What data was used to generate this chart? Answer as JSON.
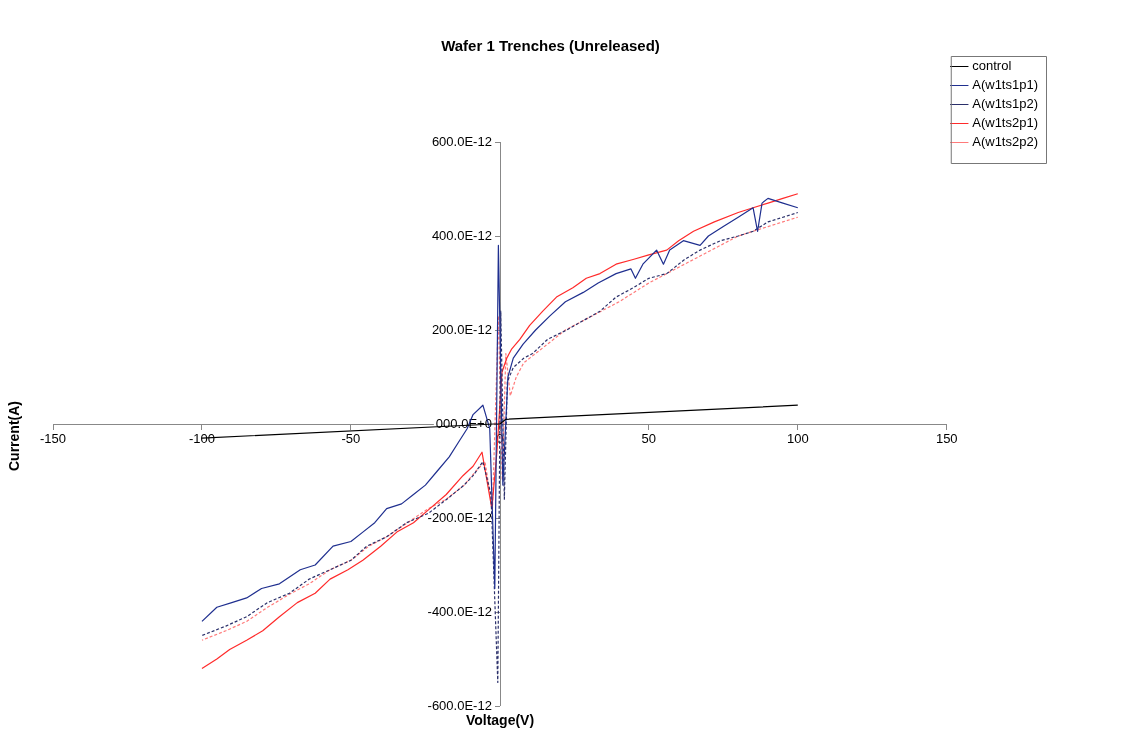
{
  "chart_data": {
    "type": "line",
    "title": "Wafer 1 Trenches (Unreleased)",
    "xlabel": "Voltage(V)",
    "ylabel": "Current(A)",
    "xlim": [
      -150,
      150
    ],
    "xticks": [
      -150,
      -100,
      -50,
      0,
      50,
      100,
      150
    ],
    "ylim": [
      -6e-10,
      6e-10
    ],
    "yticks": [
      {
        "value": -6e-10,
        "label": "-600.0E-12"
      },
      {
        "value": -4e-10,
        "label": "-400.0E-12"
      },
      {
        "value": -2e-10,
        "label": "-200.0E-12"
      },
      {
        "value": 0,
        "label": "000.0E+0"
      },
      {
        "value": 2e-10,
        "label": "200.0E-12"
      },
      {
        "value": 4e-10,
        "label": "400.0E-12"
      },
      {
        "value": 6e-10,
        "label": "600.0E-12"
      }
    ],
    "grid": false,
    "legend": "top right",
    "marker": "none",
    "series": [
      {
        "name": "control",
        "color": "#000000",
        "line_style": "solid",
        "x": [
          -100,
          -2,
          0,
          2,
          100
        ],
        "values": [
          -3e-11,
          0,
          0,
          1e-11,
          4e-11
        ]
      },
      {
        "name": "A(w1ts1p1)",
        "color": "#1f2f8f",
        "line_style": "solid",
        "x": [
          -100,
          -95,
          -90,
          -85,
          -80,
          -74,
          -67,
          -62,
          -56,
          -50,
          -46,
          -42,
          -38,
          -33,
          -29,
          -25,
          -21,
          -17,
          -14,
          -11,
          -9,
          -5.7,
          -3.4,
          -1.7,
          -0.5,
          1,
          2.7,
          4.5,
          7.8,
          12,
          16.8,
          22,
          28,
          33,
          39,
          44,
          45.5,
          48,
          52.6,
          54.9,
          57,
          61.6,
          67.2,
          70,
          75,
          80,
          85,
          86.5,
          88,
          90,
          95,
          100
        ],
        "values": [
          -4.2e-10,
          -3.9e-10,
          -3.8e-10,
          -3.7e-10,
          -3.5e-10,
          -3.4e-10,
          -3.1e-10,
          -3e-10,
          -2.6e-10,
          -2.5e-10,
          -2.3e-10,
          -2.1e-10,
          -1.8e-10,
          -1.7e-10,
          -1.5e-10,
          -1.3e-10,
          -1e-10,
          -7e-11,
          -4e-11,
          -1e-11,
          2e-11,
          4e-11,
          -1e-11,
          -3.5e-10,
          3.8e-10,
          -1.3e-10,
          1e-10,
          1.4e-10,
          1.7e-10,
          2e-10,
          2.3e-10,
          2.6e-10,
          2.8e-10,
          3e-10,
          3.2e-10,
          3.3e-10,
          3.1e-10,
          3.4e-10,
          3.7e-10,
          3.4e-10,
          3.7e-10,
          3.9e-10,
          3.8e-10,
          4e-10,
          4.2e-10,
          4.4e-10,
          4.6e-10,
          4.1e-10,
          4.7e-10,
          4.8e-10,
          4.7e-10,
          4.6e-10
        ]
      },
      {
        "name": "A(w1ts1p2)",
        "color": "#2a2f6a",
        "line_style": "dashed",
        "x": [
          -100,
          -92,
          -85,
          -78,
          -70.6,
          -64,
          -57,
          -50,
          -44.7,
          -38,
          -31.3,
          -24,
          -17.8,
          -12,
          -9,
          -5.7,
          -3,
          -0.7,
          0.3,
          1.5,
          2.5,
          4.5,
          8,
          11,
          16,
          22.4,
          28,
          33.6,
          39,
          44.8,
          50,
          56,
          62,
          67.2,
          74,
          80,
          85,
          90,
          95,
          100
        ],
        "values": [
          -4.5e-10,
          -4.3e-10,
          -4.1e-10,
          -3.8e-10,
          -3.6e-10,
          -3.3e-10,
          -3.1e-10,
          -2.9e-10,
          -2.6e-10,
          -2.4e-10,
          -2.1e-10,
          -1.9e-10,
          -1.6e-10,
          -1.3e-10,
          -1.1e-10,
          -8e-11,
          -1.5e-10,
          -5.5e-10,
          2.4e-10,
          -1.6e-10,
          9e-11,
          1.2e-10,
          1.4e-10,
          1.5e-10,
          1.8e-10,
          2e-10,
          2.2e-10,
          2.4e-10,
          2.7e-10,
          2.9e-10,
          3.1e-10,
          3.2e-10,
          3.5e-10,
          3.7e-10,
          3.9e-10,
          4e-10,
          4.1e-10,
          4.3e-10,
          4.4e-10,
          4.5e-10
        ]
      },
      {
        "name": "A(w1ts2p1)",
        "color": "#ff2a2a",
        "line_style": "solid",
        "x": [
          -100,
          -95,
          -90.7,
          -85,
          -79.6,
          -74,
          -68,
          -62,
          -57,
          -51,
          -46,
          -40,
          -34.6,
          -29,
          -23.5,
          -18,
          -12.4,
          -9,
          -6,
          -2.7,
          -1,
          0.7,
          2.3,
          4,
          6.7,
          10,
          14.4,
          19,
          24.5,
          29,
          33.6,
          39,
          44.7,
          50,
          56,
          60,
          65,
          72,
          80,
          85,
          90,
          95,
          100
        ],
        "values": [
          -5.2e-10,
          -5e-10,
          -4.8e-10,
          -4.6e-10,
          -4.4e-10,
          -4.1e-10,
          -3.8e-10,
          -3.6e-10,
          -3.3e-10,
          -3.1e-10,
          -2.9e-10,
          -2.6e-10,
          -2.3e-10,
          -2.1e-10,
          -1.8e-10,
          -1.5e-10,
          -1.1e-10,
          -9e-11,
          -6e-11,
          -1.8e-10,
          -6e-11,
          1.1e-10,
          1.4e-10,
          1.6e-10,
          1.8e-10,
          2.1e-10,
          2.4e-10,
          2.7e-10,
          2.9e-10,
          3.1e-10,
          3.2e-10,
          3.4e-10,
          3.5e-10,
          3.6e-10,
          3.7e-10,
          3.9e-10,
          4.1e-10,
          4.3e-10,
          4.5e-10,
          4.6e-10,
          4.7e-10,
          4.8e-10,
          4.9e-10
        ]
      },
      {
        "name": "A(w1ts2p2)",
        "color": "#ff7a7a",
        "line_style": "dashed",
        "x": [
          -100,
          -92,
          -85,
          -78,
          -70,
          -64,
          -57,
          -50,
          -44,
          -38,
          -31,
          -24,
          -18,
          -12,
          -8,
          -5,
          -2.5,
          -0.5,
          0.8,
          2,
          3.5,
          5.5,
          8,
          12,
          16,
          22,
          28,
          34,
          40,
          45,
          50,
          56,
          62,
          68,
          74,
          80,
          85,
          90,
          95,
          100
        ],
        "values": [
          -4.6e-10,
          -4.4e-10,
          -4.2e-10,
          -3.9e-10,
          -3.6e-10,
          -3.4e-10,
          -3.1e-10,
          -2.9e-10,
          -2.6e-10,
          -2.4e-10,
          -2.1e-10,
          -1.8e-10,
          -1.6e-10,
          -1.3e-10,
          -1e-10,
          -8e-11,
          -1.8e-10,
          2.3e-10,
          -1.2e-10,
          1.5e-10,
          6e-11,
          1e-10,
          1.3e-10,
          1.5e-10,
          1.7e-10,
          2e-10,
          2.2e-10,
          2.4e-10,
          2.6e-10,
          2.8e-10,
          3e-10,
          3.2e-10,
          3.4e-10,
          3.6e-10,
          3.8e-10,
          4e-10,
          4.1e-10,
          4.2e-10,
          4.3e-10,
          4.4e-10
        ]
      }
    ]
  }
}
